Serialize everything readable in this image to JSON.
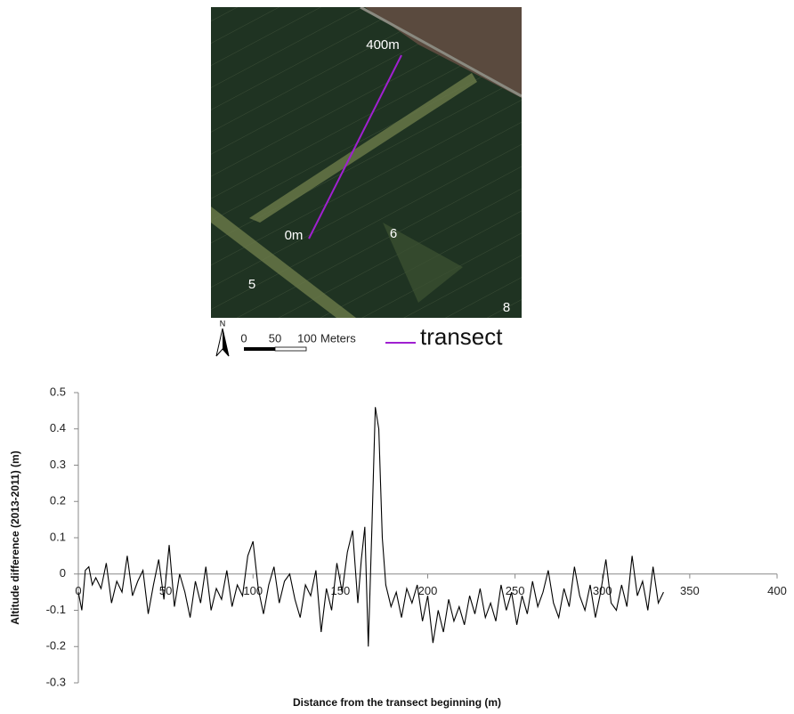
{
  "map": {
    "top_label": "400m",
    "bottom_label": "0m",
    "field_labels": [
      "6",
      "5",
      "8"
    ],
    "north": "N",
    "scale_ticks": [
      "0",
      "50",
      "100"
    ],
    "scale_unit": "Meters",
    "legend": "transect"
  },
  "chart_data": {
    "type": "line",
    "color": "#000000",
    "xlabel": "Distance from the transect beginning (m)",
    "ylabel": "Altitude difference (2013-2011) (m)",
    "xlim": [
      0,
      400
    ],
    "xticks": [
      0,
      50,
      100,
      150,
      200,
      250,
      300,
      350,
      400
    ],
    "ylim": [
      -0.3,
      0.5
    ],
    "yticks": [
      -0.3,
      -0.2,
      -0.1,
      0,
      0.1,
      0.2,
      0.3,
      0.4,
      0.5
    ],
    "x": [
      0,
      2,
      4,
      6,
      8,
      10,
      13,
      16,
      19,
      22,
      25,
      28,
      31,
      34,
      37,
      40,
      43,
      46,
      49,
      52,
      55,
      58,
      61,
      64,
      67,
      70,
      73,
      76,
      79,
      82,
      85,
      88,
      91,
      94,
      97,
      100,
      103,
      106,
      109,
      112,
      115,
      118,
      121,
      124,
      127,
      130,
      133,
      136,
      139,
      142,
      145,
      148,
      151,
      154,
      157,
      160,
      162,
      164,
      166,
      168,
      170,
      172,
      174,
      176,
      179,
      182,
      185,
      188,
      191,
      194,
      197,
      200,
      203,
      206,
      209,
      212,
      215,
      218,
      221,
      224,
      227,
      230,
      233,
      236,
      239,
      242,
      245,
      248,
      251,
      254,
      257,
      260,
      263,
      266,
      269,
      272,
      275,
      278,
      281,
      284,
      287,
      290,
      293,
      296,
      299,
      302,
      305,
      308,
      311,
      314,
      317,
      320,
      323,
      326,
      329,
      332,
      335
    ],
    "values": [
      -0.05,
      -0.1,
      0.01,
      0.02,
      -0.03,
      -0.01,
      -0.04,
      0.03,
      -0.08,
      -0.02,
      -0.05,
      0.05,
      -0.06,
      -0.02,
      0.01,
      -0.11,
      -0.03,
      0.04,
      -0.07,
      0.08,
      -0.09,
      0.0,
      -0.05,
      -0.12,
      -0.02,
      -0.08,
      0.02,
      -0.1,
      -0.04,
      -0.07,
      0.01,
      -0.09,
      -0.03,
      -0.06,
      0.05,
      0.09,
      -0.04,
      -0.11,
      -0.03,
      0.02,
      -0.08,
      -0.02,
      0.0,
      -0.07,
      -0.12,
      -0.03,
      -0.06,
      0.01,
      -0.16,
      -0.04,
      -0.1,
      0.03,
      -0.05,
      0.06,
      0.12,
      -0.08,
      0.04,
      0.13,
      -0.2,
      0.12,
      0.46,
      0.4,
      0.1,
      -0.03,
      -0.09,
      -0.05,
      -0.12,
      -0.04,
      -0.08,
      -0.03,
      -0.13,
      -0.06,
      -0.19,
      -0.1,
      -0.16,
      -0.07,
      -0.13,
      -0.09,
      -0.14,
      -0.06,
      -0.11,
      -0.04,
      -0.12,
      -0.08,
      -0.13,
      -0.03,
      -0.1,
      -0.05,
      -0.14,
      -0.06,
      -0.11,
      -0.02,
      -0.09,
      -0.05,
      0.01,
      -0.08,
      -0.12,
      -0.04,
      -0.09,
      0.02,
      -0.06,
      -0.1,
      -0.03,
      -0.12,
      -0.05,
      0.04,
      -0.08,
      -0.1,
      -0.03,
      -0.09,
      0.05,
      -0.06,
      -0.02,
      -0.1,
      0.02,
      -0.08,
      -0.05
    ]
  }
}
